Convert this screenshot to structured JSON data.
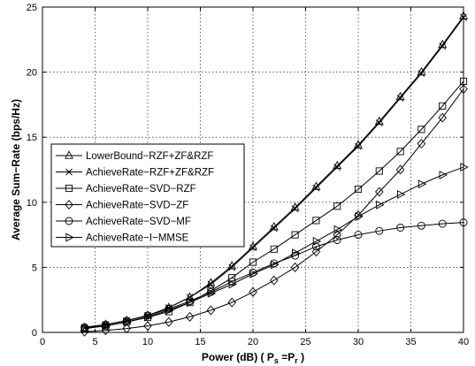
{
  "chart_data": {
    "type": "line",
    "xlabel": "Power (dB) ( P",
    "xlabel_sub_s": "s",
    "xlabel_mid": " =P",
    "xlabel_sub_r": "r",
    "xlabel_end": " )",
    "ylabel": "Average Sum−Rate (bps/Hz)",
    "xlim": [
      0,
      40
    ],
    "ylim": [
      0,
      25
    ],
    "xticks": [
      0,
      5,
      10,
      15,
      20,
      25,
      30,
      35,
      40
    ],
    "yticks": [
      0,
      5,
      10,
      15,
      20,
      25
    ],
    "grid": true,
    "legend_position": "center-left",
    "series": [
      {
        "name": "LowerBound−RZF+ZF&RZF",
        "marker": "triangle-up",
        "x": [
          4,
          6,
          8,
          10,
          12,
          14,
          16,
          18,
          20,
          22,
          24,
          26,
          28,
          30,
          32,
          34,
          36,
          38,
          40
        ],
        "y": [
          0.35,
          0.6,
          0.9,
          1.3,
          1.9,
          2.7,
          3.8,
          5.1,
          6.6,
          8.1,
          9.6,
          11.2,
          12.8,
          14.4,
          16.2,
          18.1,
          20.0,
          22.1,
          24.3
        ]
      },
      {
        "name": "AchieveRate−RZF+ZF&RZF",
        "marker": "x",
        "x": [
          4,
          6,
          8,
          10,
          12,
          14,
          16,
          18,
          20,
          22,
          24,
          26,
          28,
          30,
          32,
          34,
          36,
          38,
          40
        ],
        "y": [
          0.35,
          0.6,
          0.9,
          1.3,
          1.9,
          2.7,
          3.7,
          5.0,
          6.5,
          8.0,
          9.5,
          11.1,
          12.7,
          14.3,
          16.1,
          18.0,
          19.9,
          22.0,
          24.2
        ]
      },
      {
        "name": "AchieveRate−SVD−RZF",
        "marker": "square",
        "x": [
          4,
          6,
          8,
          10,
          12,
          14,
          16,
          18,
          20,
          22,
          24,
          26,
          28,
          30,
          32,
          34,
          36,
          38,
          40
        ],
        "y": [
          0.3,
          0.5,
          0.8,
          1.15,
          1.6,
          2.3,
          3.2,
          4.2,
          5.4,
          6.4,
          7.5,
          8.6,
          9.7,
          11.0,
          12.4,
          13.9,
          15.6,
          17.4,
          19.3
        ]
      },
      {
        "name": "AchieveRate−SVD−ZF",
        "marker": "diamond",
        "x": [
          4,
          6,
          8,
          10,
          12,
          14,
          16,
          18,
          20,
          22,
          24,
          26,
          28,
          30,
          32,
          34,
          36,
          38,
          40
        ],
        "y": [
          0.05,
          0.15,
          0.3,
          0.5,
          0.8,
          1.2,
          1.7,
          2.3,
          3.1,
          4.0,
          5.0,
          6.2,
          7.5,
          9.0,
          10.8,
          12.5,
          14.5,
          16.5,
          18.7
        ]
      },
      {
        "name": "AchieveRate−SVD−MF",
        "marker": "circle",
        "x": [
          4,
          6,
          8,
          10,
          12,
          14,
          16,
          18,
          20,
          22,
          24,
          26,
          28,
          30,
          32,
          34,
          36,
          38,
          40
        ],
        "y": [
          0.4,
          0.6,
          0.9,
          1.3,
          1.8,
          2.4,
          3.1,
          3.9,
          4.6,
          5.3,
          5.9,
          6.6,
          7.1,
          7.5,
          7.8,
          8.05,
          8.2,
          8.35,
          8.45
        ]
      },
      {
        "name": "AchieveRate−I−MMSE",
        "marker": "triangle-right",
        "x": [
          4,
          6,
          8,
          10,
          12,
          14,
          16,
          18,
          20,
          22,
          24,
          26,
          28,
          30,
          32,
          34,
          36,
          38,
          40
        ],
        "y": [
          0.3,
          0.5,
          0.8,
          1.2,
          1.7,
          2.3,
          3.0,
          3.7,
          4.5,
          5.2,
          6.1,
          7.0,
          7.9,
          8.9,
          9.8,
          10.6,
          11.4,
          12.1,
          12.7
        ]
      }
    ]
  }
}
